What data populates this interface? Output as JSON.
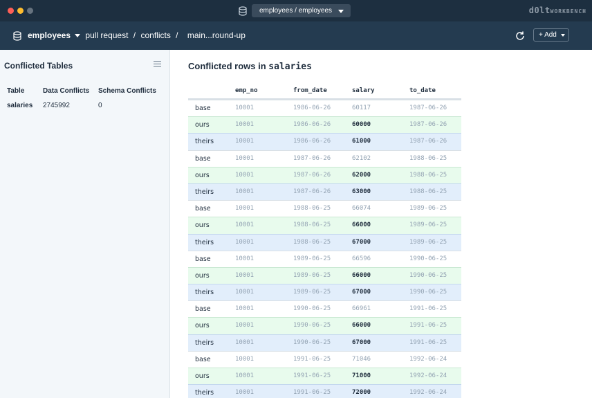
{
  "window": {
    "connection_label": "employees / employees",
    "brand_main": "d0lt",
    "brand_sub": "WORKBENCH"
  },
  "header": {
    "database": "employees",
    "crumb_pull_request": "pull request",
    "crumb_conflicts": "conflicts",
    "crumb_branch": "main...round-up",
    "separator": "/",
    "add_label": "+ Add"
  },
  "sidebar": {
    "title": "Conflicted Tables",
    "columns": [
      "Table",
      "Data Conflicts",
      "Schema Conflicts"
    ],
    "rows": [
      {
        "table": "salaries",
        "data_conflicts": "2745992",
        "schema_conflicts": "0"
      }
    ]
  },
  "main": {
    "title_prefix": "Conflicted rows in",
    "title_table": "salaries",
    "columns": [
      "emp_no",
      "from_date",
      "salary",
      "to_date"
    ],
    "rows": [
      {
        "type": "base",
        "emp_no": "10001",
        "from_date": "1986-06-26",
        "salary": "60117",
        "to_date": "1987-06-26"
      },
      {
        "type": "ours",
        "emp_no": "10001",
        "from_date": "1986-06-26",
        "salary": "60000",
        "to_date": "1987-06-26"
      },
      {
        "type": "theirs",
        "emp_no": "10001",
        "from_date": "1986-06-26",
        "salary": "61000",
        "to_date": "1987-06-26"
      },
      {
        "type": "base",
        "emp_no": "10001",
        "from_date": "1987-06-26",
        "salary": "62102",
        "to_date": "1988-06-25"
      },
      {
        "type": "ours",
        "emp_no": "10001",
        "from_date": "1987-06-26",
        "salary": "62000",
        "to_date": "1988-06-25"
      },
      {
        "type": "theirs",
        "emp_no": "10001",
        "from_date": "1987-06-26",
        "salary": "63000",
        "to_date": "1988-06-25"
      },
      {
        "type": "base",
        "emp_no": "10001",
        "from_date": "1988-06-25",
        "salary": "66074",
        "to_date": "1989-06-25"
      },
      {
        "type": "ours",
        "emp_no": "10001",
        "from_date": "1988-06-25",
        "salary": "66000",
        "to_date": "1989-06-25"
      },
      {
        "type": "theirs",
        "emp_no": "10001",
        "from_date": "1988-06-25",
        "salary": "67000",
        "to_date": "1989-06-25"
      },
      {
        "type": "base",
        "emp_no": "10001",
        "from_date": "1989-06-25",
        "salary": "66596",
        "to_date": "1990-06-25"
      },
      {
        "type": "ours",
        "emp_no": "10001",
        "from_date": "1989-06-25",
        "salary": "66000",
        "to_date": "1990-06-25"
      },
      {
        "type": "theirs",
        "emp_no": "10001",
        "from_date": "1989-06-25",
        "salary": "67000",
        "to_date": "1990-06-25"
      },
      {
        "type": "base",
        "emp_no": "10001",
        "from_date": "1990-06-25",
        "salary": "66961",
        "to_date": "1991-06-25"
      },
      {
        "type": "ours",
        "emp_no": "10001",
        "from_date": "1990-06-25",
        "salary": "66000",
        "to_date": "1991-06-25"
      },
      {
        "type": "theirs",
        "emp_no": "10001",
        "from_date": "1990-06-25",
        "salary": "67000",
        "to_date": "1991-06-25"
      },
      {
        "type": "base",
        "emp_no": "10001",
        "from_date": "1991-06-25",
        "salary": "71046",
        "to_date": "1992-06-24"
      },
      {
        "type": "ours",
        "emp_no": "10001",
        "from_date": "1991-06-25",
        "salary": "71000",
        "to_date": "1992-06-24"
      },
      {
        "type": "theirs",
        "emp_no": "10001",
        "from_date": "1991-06-25",
        "salary": "72000",
        "to_date": "1992-06-24"
      }
    ]
  },
  "colors": {
    "titlebar_bg": "#1d2f40",
    "header_bg": "#243b50",
    "ours_row_bg": "#e8fbed",
    "theirs_row_bg": "#e2eefb"
  },
  "icons": [
    "database-icon",
    "refresh-icon",
    "menu-icon",
    "chevron-down-icon"
  ]
}
